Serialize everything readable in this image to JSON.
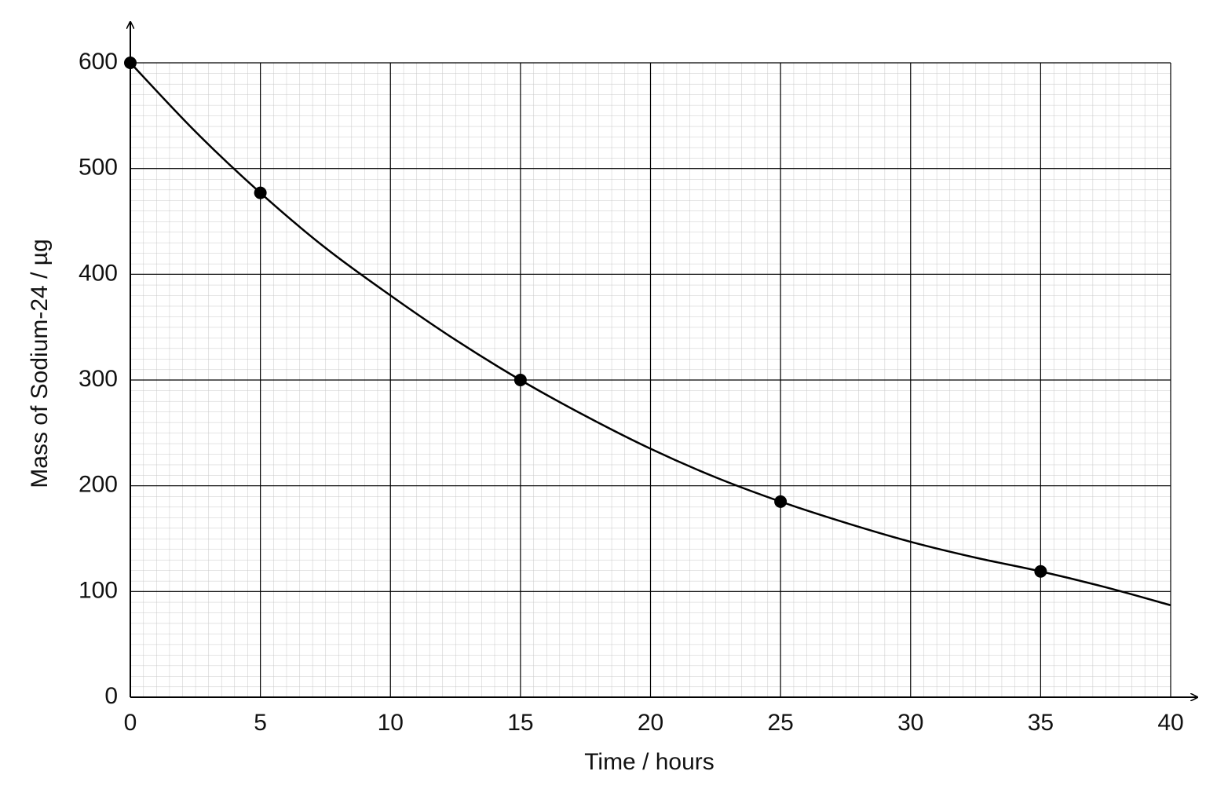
{
  "chart_data": {
    "type": "scatter",
    "xlabel": "Time / hours",
    "ylabel": "Mass of Sodium-24 / µg",
    "xlim": [
      0,
      40
    ],
    "ylim": [
      0,
      600
    ],
    "xticks": [
      0,
      5,
      10,
      15,
      20,
      25,
      30,
      35,
      40
    ],
    "yticks": [
      0,
      100,
      200,
      300,
      400,
      500,
      600
    ],
    "grid": true,
    "series": [
      {
        "type": "scatter",
        "color": "#000000",
        "x": [
          0,
          5,
          15,
          25,
          35
        ],
        "values": [
          600,
          477,
          300,
          185,
          119
        ]
      },
      {
        "type": "line",
        "color": "#000000",
        "x": [
          0,
          2.5,
          5,
          7.5,
          10,
          12.5,
          15,
          17.5,
          20,
          22.5,
          25,
          27.5,
          30,
          32.5,
          35,
          37.5,
          40
        ],
        "values": [
          600,
          535,
          477,
          425,
          380,
          338,
          300,
          266,
          235,
          208,
          185,
          165,
          147,
          132,
          119,
          104,
          87
        ]
      }
    ]
  }
}
